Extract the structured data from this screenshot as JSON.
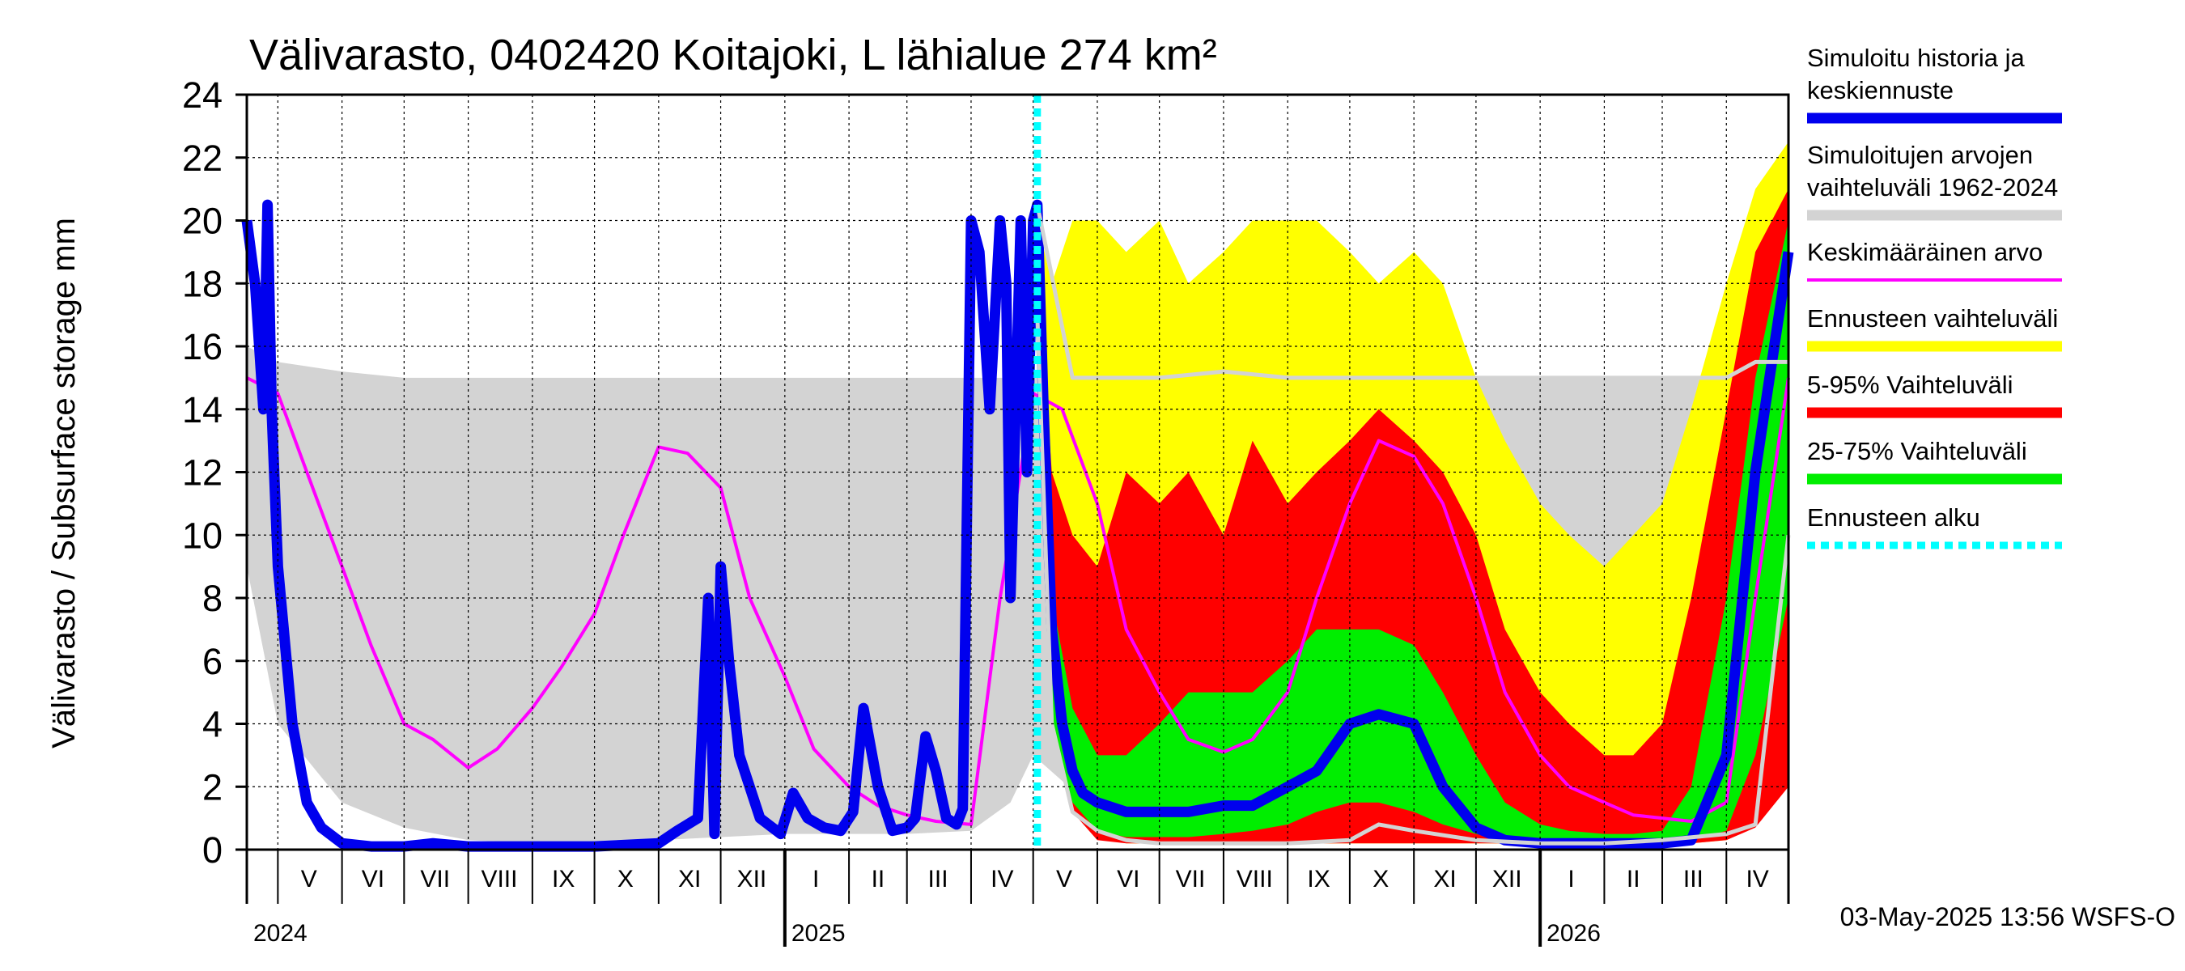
{
  "chart_data": {
    "type": "area",
    "title": "Välivarasto, 0402420 Koitajoki, L lähialue 274 km²",
    "ylabel": "Välivarasto / Subsurface storage  mm",
    "ylim": [
      0,
      24
    ],
    "ytick_labels": [
      "0",
      "2",
      "4",
      "6",
      "8",
      "10",
      "12",
      "14",
      "16",
      "18",
      "20",
      "22",
      "24"
    ],
    "x_range": [
      "2024-04-16",
      "2026-05-01"
    ],
    "grid": true,
    "legend_position": "right",
    "forecast_start": "2025-05-03",
    "months": [
      {
        "label": "V",
        "date": "2024-05-16"
      },
      {
        "label": "VI",
        "date": "2024-06-16"
      },
      {
        "label": "VII",
        "date": "2024-07-16"
      },
      {
        "label": "VIII",
        "date": "2024-08-16"
      },
      {
        "label": "IX",
        "date": "2024-09-16"
      },
      {
        "label": "X",
        "date": "2024-10-16"
      },
      {
        "label": "XI",
        "date": "2024-11-16"
      },
      {
        "label": "XII",
        "date": "2024-12-16"
      },
      {
        "label": "I",
        "date": "2025-01-16"
      },
      {
        "label": "II",
        "date": "2025-02-15"
      },
      {
        "label": "III",
        "date": "2025-03-16"
      },
      {
        "label": "IV",
        "date": "2025-04-16"
      },
      {
        "label": "V",
        "date": "2025-05-16"
      },
      {
        "label": "VI",
        "date": "2025-06-16"
      },
      {
        "label": "VII",
        "date": "2025-07-16"
      },
      {
        "label": "VIII",
        "date": "2025-08-16"
      },
      {
        "label": "IX",
        "date": "2025-09-16"
      },
      {
        "label": "X",
        "date": "2025-10-16"
      },
      {
        "label": "XI",
        "date": "2025-11-16"
      },
      {
        "label": "XII",
        "date": "2025-12-16"
      },
      {
        "label": "I",
        "date": "2026-01-16"
      },
      {
        "label": "II",
        "date": "2026-02-15"
      },
      {
        "label": "III",
        "date": "2026-03-16"
      },
      {
        "label": "IV",
        "date": "2026-04-16"
      }
    ],
    "years": [
      {
        "label": "2024",
        "date": "2024-04-16"
      },
      {
        "label": "2025",
        "date": "2025-01-01"
      },
      {
        "label": "2026",
        "date": "2026-01-01"
      }
    ],
    "legend": [
      {
        "label": "Simuloitu historia ja\nkeskiennuste",
        "color": "#0000ee",
        "style": "thick"
      },
      {
        "label": "Simuloitujen arvojen\nvaihteluväli 1962-2024",
        "color": "#d3d3d3",
        "style": "thick"
      },
      {
        "label": "Keskimääräinen arvo",
        "color": "#ff00ff",
        "style": "thin"
      },
      {
        "label": "Ennusteen vaihteluväli",
        "color": "#ffff00",
        "style": "thick"
      },
      {
        "label": "5-95% Vaihteluväli",
        "color": "#ff0000",
        "style": "thick"
      },
      {
        "label": "25-75% Vaihteluväli",
        "color": "#00ee00",
        "style": "thick"
      },
      {
        "label": "Ennusteen alku",
        "color": "#00ffff",
        "style": "dashed"
      }
    ],
    "series": [
      {
        "name": "Simuloitujen arvojen vaihteluväli 1962-2024",
        "kind": "band",
        "color": "#d3d3d3",
        "x": [
          "2024-04-16",
          "2024-05-01",
          "2024-06-01",
          "2024-07-01",
          "2024-08-01",
          "2024-09-01",
          "2024-10-01",
          "2024-11-01",
          "2024-12-01",
          "2025-01-01",
          "2025-02-01",
          "2025-03-01",
          "2025-04-01",
          "2025-04-20",
          "2025-05-01",
          "2025-06-01",
          "2025-07-01",
          "2025-08-01",
          "2025-09-01",
          "2025-10-01",
          "2025-11-01",
          "2025-12-01",
          "2026-01-01",
          "2026-02-01",
          "2026-03-01",
          "2026-04-01",
          "2026-05-01"
        ],
        "low": [
          9,
          4,
          1.5,
          0.7,
          0.3,
          0.2,
          0.2,
          0.3,
          0.4,
          0.5,
          0.5,
          0.5,
          0.6,
          1.5,
          3,
          1.2,
          0.5,
          0.3,
          0.2,
          0.3,
          0.3,
          0.4,
          0.5,
          0.5,
          0.5,
          0.6,
          2
        ],
        "high": [
          16,
          15.5,
          15.2,
          15,
          15,
          15,
          15,
          15,
          15,
          15,
          15,
          15,
          15,
          15,
          15,
          15,
          15,
          15,
          15,
          15,
          15,
          15,
          15,
          15,
          15,
          15,
          15.5
        ]
      },
      {
        "name": "Ennusteen vaihteluväli",
        "kind": "band",
        "color": "#ffff00",
        "x": [
          "2025-05-03",
          "2025-05-10",
          "2025-05-20",
          "2025-06-01",
          "2025-06-15",
          "2025-07-01",
          "2025-07-15",
          "2025-08-01",
          "2025-08-15",
          "2025-09-01",
          "2025-09-15",
          "2025-10-01",
          "2025-10-15",
          "2025-11-01",
          "2025-11-15",
          "2025-12-01",
          "2025-12-15",
          "2026-01-01",
          "2026-01-15",
          "2026-02-01",
          "2026-02-15",
          "2026-03-01",
          "2026-03-15",
          "2026-04-01",
          "2026-04-15",
          "2026-05-01"
        ],
        "low": [
          19,
          8,
          2,
          0.5,
          0.2,
          0.2,
          0.2,
          0.2,
          0.2,
          0.2,
          0.2,
          0.2,
          0.2,
          0.2,
          0.2,
          0.2,
          0.2,
          0.2,
          0.2,
          0.2,
          0.2,
          0.2,
          0.2,
          0.3,
          1,
          4
        ],
        "high": [
          20,
          18,
          20,
          20,
          19,
          20,
          18,
          19,
          20,
          20,
          20,
          19,
          18,
          19,
          18,
          15,
          13,
          11,
          10,
          9,
          10,
          11,
          14,
          18,
          21,
          22.5
        ]
      },
      {
        "name": "5-95% Vaihteluväli",
        "kind": "band",
        "color": "#ff0000",
        "x": [
          "2025-05-03",
          "2025-05-10",
          "2025-05-20",
          "2025-06-01",
          "2025-06-15",
          "2025-07-01",
          "2025-07-15",
          "2025-08-01",
          "2025-08-15",
          "2025-09-01",
          "2025-09-15",
          "2025-10-01",
          "2025-10-15",
          "2025-11-01",
          "2025-11-15",
          "2025-12-01",
          "2025-12-15",
          "2026-01-01",
          "2026-01-15",
          "2026-02-01",
          "2026-02-15",
          "2026-03-01",
          "2026-03-15",
          "2026-04-01",
          "2026-04-15",
          "2026-05-01"
        ],
        "low": [
          18,
          6,
          1.2,
          0.3,
          0.2,
          0.2,
          0.2,
          0.2,
          0.2,
          0.2,
          0.2,
          0.2,
          0.2,
          0.2,
          0.2,
          0.2,
          0.2,
          0.2,
          0.2,
          0.2,
          0.2,
          0.2,
          0.2,
          0.3,
          0.7,
          2
        ],
        "high": [
          19,
          12,
          10,
          9,
          12,
          11,
          12,
          10,
          13,
          11,
          12,
          13,
          14,
          13,
          12,
          10,
          7,
          5,
          4,
          3,
          3,
          4,
          8,
          14,
          19,
          21
        ]
      },
      {
        "name": "25-75% Vaihteluväli",
        "kind": "band",
        "color": "#00ee00",
        "x": [
          "2025-05-03",
          "2025-05-10",
          "2025-05-20",
          "2025-06-01",
          "2025-06-15",
          "2025-07-01",
          "2025-07-15",
          "2025-08-01",
          "2025-08-15",
          "2025-09-01",
          "2025-09-15",
          "2025-10-01",
          "2025-10-15",
          "2025-11-01",
          "2025-11-15",
          "2025-12-01",
          "2025-12-15",
          "2026-01-01",
          "2026-01-15",
          "2026-02-01",
          "2026-02-15",
          "2026-03-01",
          "2026-03-15",
          "2026-04-01",
          "2026-04-15",
          "2026-05-01"
        ],
        "low": [
          17,
          4,
          1.5,
          0.6,
          0.4,
          0.4,
          0.4,
          0.5,
          0.6,
          0.8,
          1.2,
          1.5,
          1.5,
          1.2,
          0.8,
          0.5,
          0.3,
          0.2,
          0.2,
          0.2,
          0.2,
          0.2,
          0.3,
          0.6,
          3,
          8
        ],
        "high": [
          18,
          8,
          4.5,
          3,
          3,
          4,
          5,
          5,
          5,
          6,
          7,
          7,
          7,
          6.5,
          5,
          3,
          1.5,
          0.8,
          0.6,
          0.5,
          0.5,
          0.6,
          2,
          8,
          15,
          20
        ]
      },
      {
        "name": "Keskimääräinen arvo",
        "kind": "line",
        "color": "#ff00ff",
        "x": [
          "2024-04-16",
          "2024-05-01",
          "2024-05-15",
          "2024-06-01",
          "2024-06-15",
          "2024-07-01",
          "2024-07-15",
          "2024-08-01",
          "2024-08-15",
          "2024-09-01",
          "2024-09-15",
          "2024-10-01",
          "2024-10-15",
          "2024-11-01",
          "2024-11-15",
          "2024-12-01",
          "2024-12-15",
          "2025-01-01",
          "2025-01-15",
          "2025-02-01",
          "2025-02-15",
          "2025-03-01",
          "2025-03-15",
          "2025-04-01",
          "2025-04-15",
          "2025-05-01",
          "2025-05-15",
          "2025-06-01",
          "2025-06-15",
          "2025-07-01",
          "2025-07-15",
          "2025-08-01",
          "2025-08-15",
          "2025-09-01",
          "2025-09-15",
          "2025-10-01",
          "2025-10-15",
          "2025-11-01",
          "2025-11-15",
          "2025-12-01",
          "2025-12-15",
          "2026-01-01",
          "2026-01-15",
          "2026-02-01",
          "2026-02-15",
          "2026-03-01",
          "2026-03-15",
          "2026-04-01",
          "2026-04-15",
          "2026-05-01"
        ],
        "y": [
          15,
          14.5,
          12,
          9,
          6.5,
          4,
          3.5,
          2.6,
          3.2,
          4.5,
          5.8,
          7.5,
          10,
          12.8,
          12.6,
          11.5,
          8,
          5.5,
          3.2,
          2,
          1.4,
          1.1,
          0.9,
          0.8,
          8,
          14.5,
          14,
          11,
          7,
          5,
          3.5,
          3.1,
          3.5,
          5,
          8,
          11,
          13,
          12.5,
          11,
          8,
          5,
          3,
          2,
          1.5,
          1.1,
          1,
          0.9,
          1.5,
          8,
          15
        ]
      },
      {
        "name": "Simuloitu historia ja keskiennuste",
        "kind": "line",
        "color": "#0000ee",
        "x": [
          "2024-04-16",
          "2024-04-20",
          "2024-04-24",
          "2024-04-26",
          "2024-04-28",
          "2024-05-01",
          "2024-05-08",
          "2024-05-15",
          "2024-05-22",
          "2024-06-01",
          "2024-06-15",
          "2024-07-01",
          "2024-07-15",
          "2024-08-01",
          "2024-09-01",
          "2024-10-01",
          "2024-11-01",
          "2024-11-10",
          "2024-11-20",
          "2024-11-25",
          "2024-11-28",
          "2024-12-01",
          "2024-12-05",
          "2024-12-10",
          "2024-12-20",
          "2024-12-30",
          "2025-01-05",
          "2025-01-12",
          "2025-01-20",
          "2025-01-28",
          "2025-02-03",
          "2025-02-08",
          "2025-02-15",
          "2025-02-22",
          "2025-03-01",
          "2025-03-05",
          "2025-03-10",
          "2025-03-15",
          "2025-03-20",
          "2025-03-25",
          "2025-03-28",
          "2025-04-01",
          "2025-04-05",
          "2025-04-10",
          "2025-04-15",
          "2025-04-18",
          "2025-04-20",
          "2025-04-25",
          "2025-04-28",
          "2025-05-01",
          "2025-05-03",
          "2025-05-06",
          "2025-05-10",
          "2025-05-15",
          "2025-05-20",
          "2025-05-25",
          "2025-06-01",
          "2025-06-15",
          "2025-07-01",
          "2025-07-15",
          "2025-08-01",
          "2025-08-15",
          "2025-09-01",
          "2025-09-15",
          "2025-10-01",
          "2025-10-15",
          "2025-11-01",
          "2025-11-15",
          "2025-12-01",
          "2025-12-15",
          "2026-01-01",
          "2026-02-01",
          "2026-03-01",
          "2026-03-15",
          "2026-04-01",
          "2026-04-15",
          "2026-05-01"
        ],
        "y": [
          20,
          18,
          14,
          20.5,
          14,
          9,
          4,
          1.5,
          0.7,
          0.2,
          0.1,
          0.1,
          0.2,
          0.1,
          0.1,
          0.1,
          0.2,
          0.6,
          1,
          8,
          0.5,
          9,
          6,
          3,
          1,
          0.5,
          1.8,
          1,
          0.7,
          0.6,
          1.2,
          4.5,
          2,
          0.6,
          0.7,
          1,
          3.6,
          2.5,
          1,
          0.8,
          1.3,
          20,
          19,
          14,
          20,
          18,
          8,
          20,
          12,
          20,
          20.5,
          14,
          7,
          4,
          2.5,
          1.8,
          1.5,
          1.2,
          1.2,
          1.2,
          1.4,
          1.4,
          2,
          2.5,
          4,
          4.3,
          4,
          2,
          0.7,
          0.3,
          0.2,
          0.2,
          0.2,
          0.3,
          3,
          12,
          19
        ]
      },
      {
        "name": "Ennusteen minimi",
        "kind": "line",
        "color": "#d3d3d3",
        "x": [
          "2025-05-03",
          "2025-05-10",
          "2025-05-20",
          "2025-06-01",
          "2025-06-15",
          "2025-07-01",
          "2025-08-01",
          "2025-09-01",
          "2025-10-01",
          "2025-10-15",
          "2025-11-01",
          "2025-12-01",
          "2026-01-01",
          "2026-02-01",
          "2026-03-01",
          "2026-04-01",
          "2026-04-15",
          "2026-05-01"
        ],
        "y": [
          17,
          4,
          1.2,
          0.6,
          0.3,
          0.2,
          0.2,
          0.2,
          0.3,
          0.8,
          0.6,
          0.3,
          0.2,
          0.2,
          0.3,
          0.5,
          0.8,
          10
        ]
      },
      {
        "name": "Ennusteen maksimi",
        "kind": "line",
        "color": "#d3d3d3",
        "x": [
          "2025-05-03",
          "2025-05-20",
          "2025-06-01",
          "2025-07-01",
          "2025-08-01",
          "2025-09-01",
          "2025-10-01",
          "2025-11-01",
          "2025-12-01",
          "2026-01-01",
          "2026-02-01",
          "2026-03-01",
          "2026-04-01",
          "2026-04-15",
          "2026-05-01"
        ],
        "y": [
          20.5,
          15,
          15,
          15,
          15.2,
          15,
          15,
          15,
          15,
          15,
          15,
          15,
          15,
          15.5,
          15.5
        ]
      }
    ]
  },
  "timestamp": "03-May-2025 13:56 WSFS-O"
}
